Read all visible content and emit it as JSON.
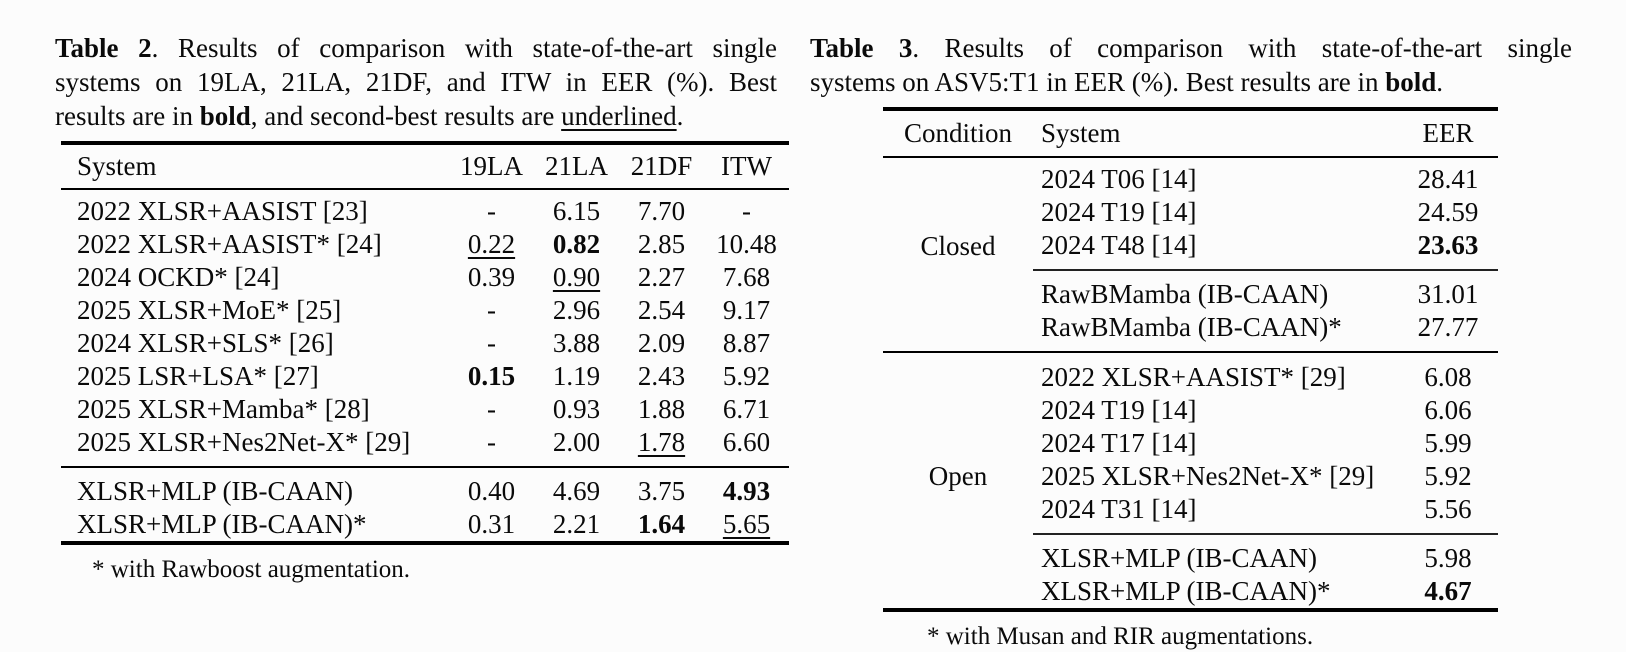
{
  "page": {
    "background_color": "#fcfcfc",
    "text_color": "#0a0a0a"
  },
  "table2": {
    "caption": {
      "label": "Table 2",
      "line1_rest": ". Results of comparison with state-of-the-art single",
      "line2": "systems on 19LA, 21LA, 21DF, and ITW in EER (%). Best",
      "line3_a": "results are in ",
      "line3_bold": "bold",
      "line3_b": ", and second-best results are ",
      "line3_underline": "underlined",
      "line3_end": "."
    },
    "headers": [
      "System",
      "19LA",
      "21LA",
      "21DF",
      "ITW"
    ],
    "rows": [
      {
        "system": "2022 XLSR+AASIST [23]",
        "v": [
          "-",
          "6.15",
          "7.70",
          "-"
        ]
      },
      {
        "system": "2022 XLSR+AASIST* [24]",
        "v": [
          "0.22",
          "0.82",
          "2.85",
          "10.48"
        ]
      },
      {
        "system": "2024 OCKD* [24]",
        "v": [
          "0.39",
          "0.90",
          "2.27",
          "7.68"
        ]
      },
      {
        "system": "2025 XLSR+MoE* [25]",
        "v": [
          "-",
          "2.96",
          "2.54",
          "9.17"
        ]
      },
      {
        "system": "2024 XLSR+SLS* [26]",
        "v": [
          "-",
          "3.88",
          "2.09",
          "8.87"
        ]
      },
      {
        "system": "2025 LSR+LSA* [27]",
        "v": [
          "0.15",
          "1.19",
          "2.43",
          "5.92"
        ]
      },
      {
        "system": "2025 XLSR+Mamba* [28]",
        "v": [
          "-",
          "0.93",
          "1.88",
          "6.71"
        ]
      },
      {
        "system": "2025 XLSR+Nes2Net-X* [29]",
        "v": [
          "-",
          "2.00",
          "1.78",
          "6.60"
        ]
      },
      {
        "system": "XLSR+MLP (IB-CAAN)",
        "v": [
          "0.40",
          "4.69",
          "3.75",
          "4.93"
        ]
      },
      {
        "system": "XLSR+MLP (IB-CAAN)*",
        "v": [
          "0.31",
          "2.21",
          "1.64",
          "5.65"
        ]
      }
    ],
    "footnote": "* with Rawboost augmentation."
  },
  "table3": {
    "caption": {
      "label": "Table 3",
      "line1_rest": ". Results of comparison with state-of-the-art single",
      "line2_a": "systems on ASV5:T1 in EER (%). Best results are in ",
      "line2_bold": "bold",
      "line2_end": "."
    },
    "headers": [
      "Condition",
      "System",
      "EER"
    ],
    "rows": [
      {
        "condition": "",
        "system": "2024 T06 [14]",
        "eer": "28.41"
      },
      {
        "condition": "",
        "system": "2024 T19 [14]",
        "eer": "24.59"
      },
      {
        "condition": "Closed",
        "system": "2024 T48 [14]",
        "eer": "23.63"
      },
      {
        "condition": "",
        "system": "RawBMamba (IB-CAAN)",
        "eer": "31.01"
      },
      {
        "condition": "",
        "system": "RawBMamba (IB-CAAN)*",
        "eer": "27.77"
      },
      {
        "condition": "",
        "system": "2022 XLSR+AASIST* [29]",
        "eer": "6.08"
      },
      {
        "condition": "",
        "system": "2024 T19 [14]",
        "eer": "6.06"
      },
      {
        "condition": "",
        "system": "2024 T17 [14]",
        "eer": "5.99"
      },
      {
        "condition": "Open",
        "system": "2025 XLSR+Nes2Net-X* [29]",
        "eer": "5.92"
      },
      {
        "condition": "",
        "system": "2024 T31 [14]",
        "eer": "5.56"
      },
      {
        "condition": "",
        "system": "XLSR+MLP (IB-CAAN)",
        "eer": "5.98"
      },
      {
        "condition": "",
        "system": "XLSR+MLP (IB-CAAN)*",
        "eer": "4.67"
      }
    ],
    "footnote": "* with Musan and RIR augmentations."
  }
}
